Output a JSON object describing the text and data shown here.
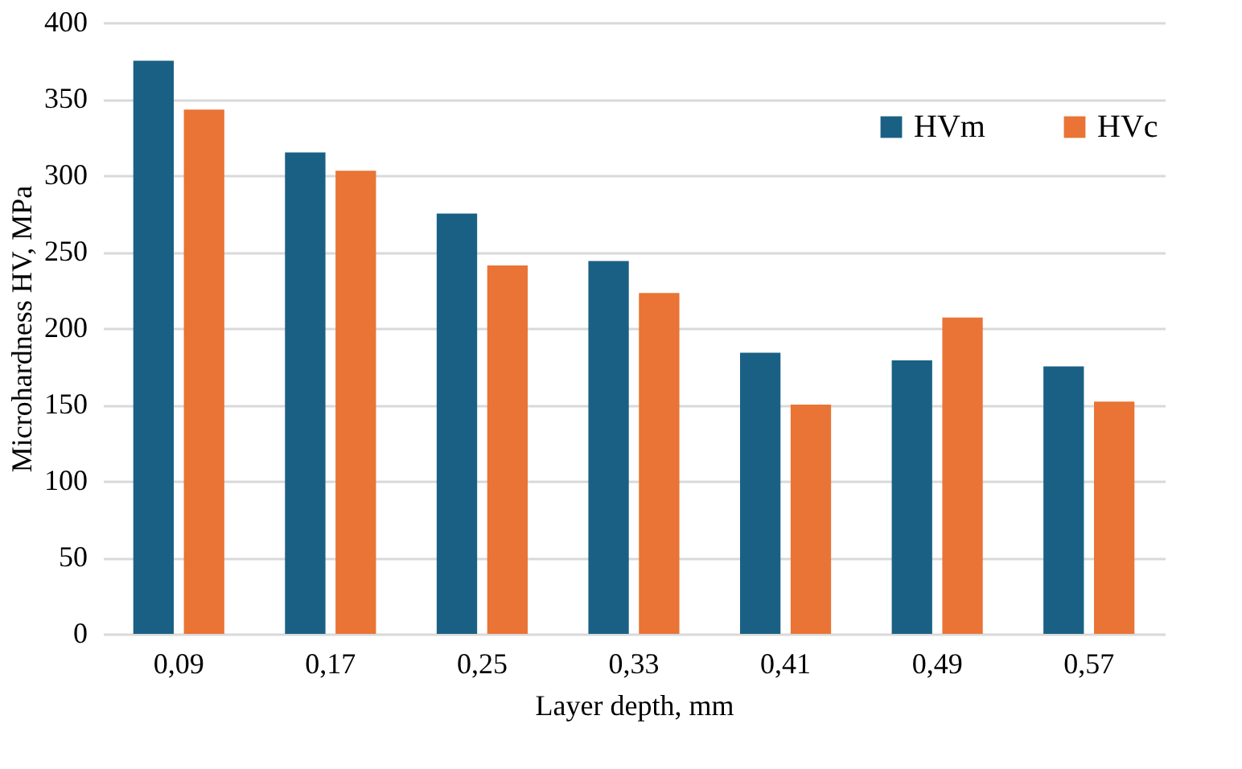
{
  "chart_data": {
    "type": "bar",
    "xlabel": "Layer depth, mm",
    "ylabel": "Microhardness HV, MPa",
    "categories": [
      "0,09",
      "0,17",
      "0,25",
      "0,33",
      "0,41",
      "0,49",
      "0,57"
    ],
    "series": [
      {
        "name": "HVm",
        "color": "#1a6085",
        "values": [
          375,
          315,
          275,
          244,
          184,
          179,
          175
        ]
      },
      {
        "name": "HVc",
        "color": "#e97435",
        "values": [
          343,
          303,
          241,
          223,
          150,
          207,
          152
        ]
      }
    ],
    "ylim": [
      0,
      400
    ],
    "yticks": [
      0,
      50,
      100,
      150,
      200,
      250,
      300,
      350,
      400
    ],
    "grid": "y",
    "legend": "top right"
  }
}
